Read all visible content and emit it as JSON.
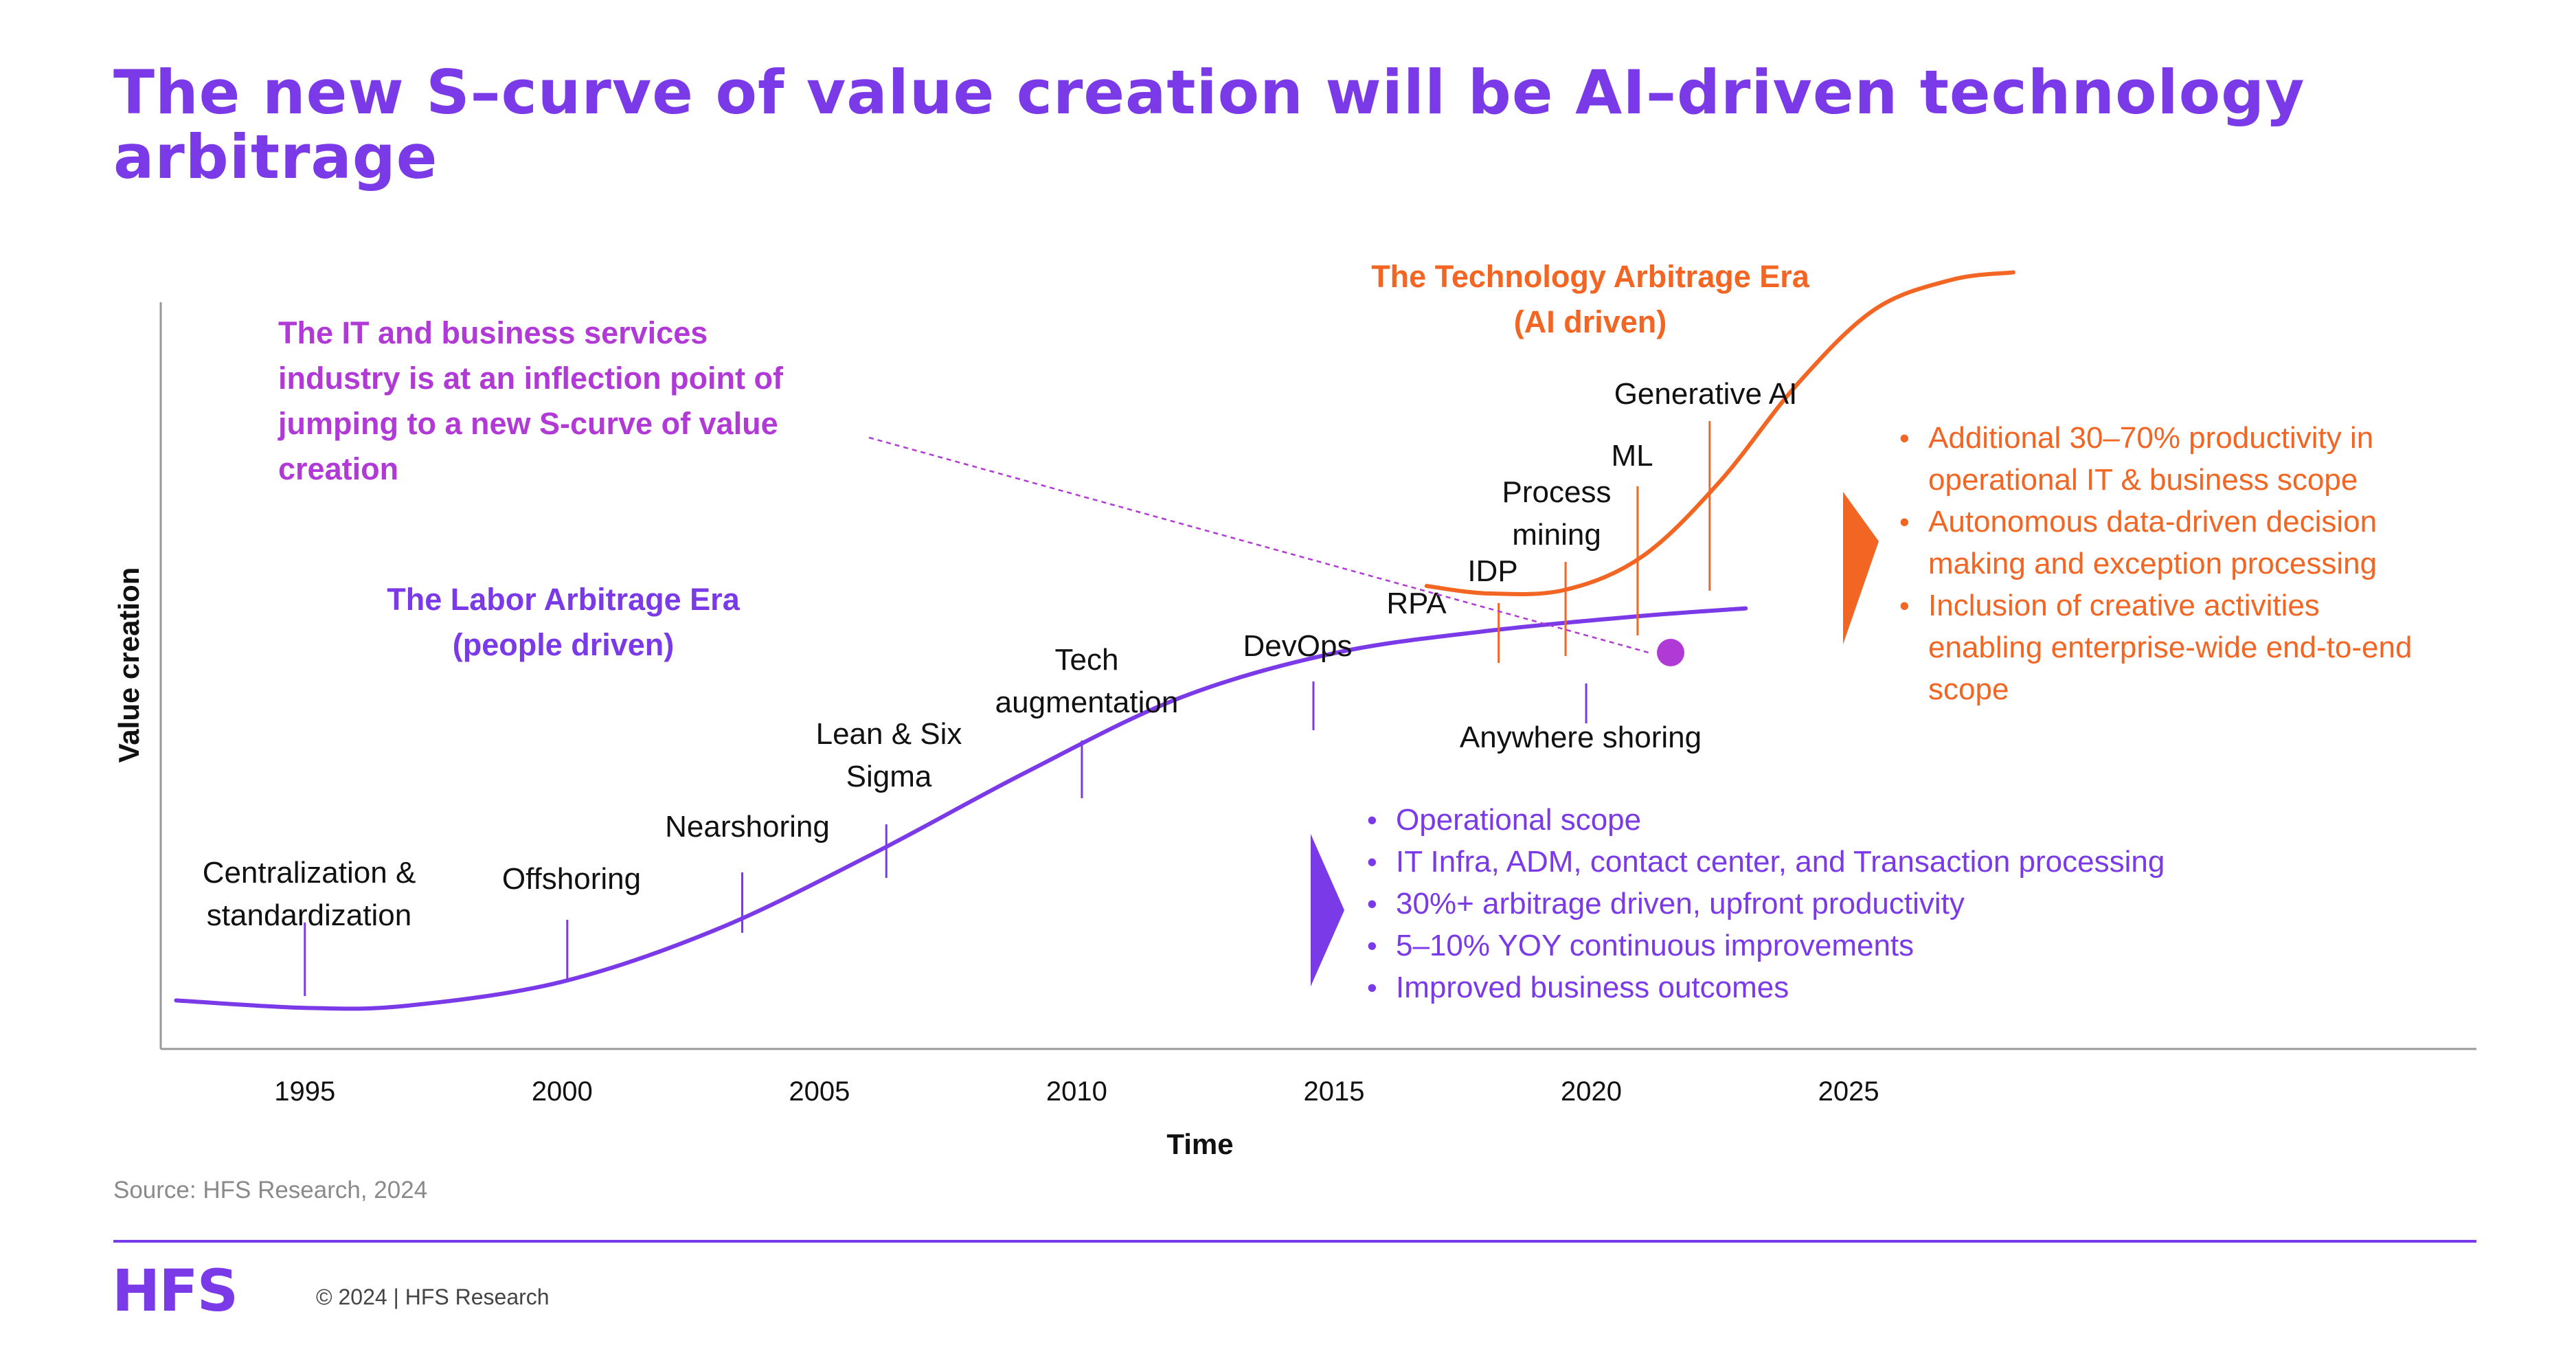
{
  "title": "The new S–curve of value creation will be AI–driven technology arbitrage",
  "source": "Source: HFS Research, 2024",
  "footer": {
    "logo": "HFS",
    "copyright": "© 2024 | HFS Research"
  },
  "colors": {
    "purple": "#7b3ae8",
    "orange": "#f26522",
    "magenta": "#b13ad6",
    "black": "#111111"
  },
  "chart_data": {
    "type": "line",
    "title": "",
    "xlabel": "Time",
    "ylabel": "Value creation",
    "x_ticks": [
      1995,
      2000,
      2005,
      2010,
      2015,
      2020,
      2025
    ],
    "xlim": [
      1992.2,
      2037.2
    ],
    "ylim": [
      0,
      10
    ],
    "grid": false,
    "series": [
      {
        "name": "The Labor Arbitrage Era (people driven)",
        "color": "#7b3ae8",
        "x": [
          1992.5,
          1995,
          1997,
          2000,
          2003,
          2006,
          2009,
          2012,
          2015,
          2018,
          2021,
          2023
        ],
        "y": [
          0.65,
          0.55,
          0.58,
          0.9,
          1.6,
          2.6,
          3.7,
          4.7,
          5.3,
          5.6,
          5.8,
          5.9
        ]
      },
      {
        "name": "The Technology Arbitrage Era (AI driven)",
        "color": "#f26522",
        "x": [
          2016.8,
          2018,
          2019.5,
          2021,
          2022.5,
          2024,
          2025.5,
          2027,
          2028.2
        ],
        "y": [
          6.2,
          6.1,
          6.15,
          6.6,
          7.6,
          8.9,
          9.9,
          10.3,
          10.4
        ]
      }
    ],
    "milestones": [
      {
        "x": 1995.0,
        "label": [
          "Centralization &",
          "standardization"
        ]
      },
      {
        "x": 2000.1,
        "label": [
          "Offshoring"
        ]
      },
      {
        "x": 2003.5,
        "label": [
          "Nearshoring"
        ]
      },
      {
        "x": 2006.3,
        "label": [
          "Lean & Six",
          "Sigma"
        ]
      },
      {
        "x": 2010.1,
        "label": [
          "Tech",
          "augmentation"
        ]
      },
      {
        "x": 2014.6,
        "label": [
          "DevOps"
        ]
      },
      {
        "x": 2019.9,
        "label": [
          "Anywhere shoring"
        ]
      },
      {
        "x": 2018.2,
        "label": [
          "RPA"
        ]
      },
      {
        "x": 2018.2,
        "label": [
          "IDP"
        ]
      },
      {
        "x": 2019.5,
        "label": [
          "Process",
          "mining"
        ]
      },
      {
        "x": 2020.9,
        "label": [
          "ML"
        ]
      },
      {
        "x": 2022.3,
        "label": [
          "Generative AI"
        ]
      }
    ],
    "annotations": {
      "inflection_note": [
        "The IT and business services",
        "industry is at an inflection point of",
        "jumping to a new S-curve of value",
        "creation"
      ],
      "labor_era": [
        "The Labor Arbitrage Era",
        "(people driven)"
      ],
      "tech_era": [
        "The Technology Arbitrage Era",
        "(AI driven)"
      ],
      "labor_bullets": [
        "Operational scope",
        "IT Infra, ADM, contact center, and Transaction processing",
        "30%+ arbitrage driven, upfront productivity",
        "5–10% YOY continuous improvements",
        "Improved business outcomes"
      ],
      "tech_bullets": [
        [
          "Additional 30–70% productivity in",
          "operational IT & business scope"
        ],
        [
          "Autonomous data-driven decision",
          "making and exception processing"
        ],
        [
          "Inclusion of creative activities",
          "enabling enterprise-wide end-to-end",
          "scope"
        ]
      ]
    }
  }
}
